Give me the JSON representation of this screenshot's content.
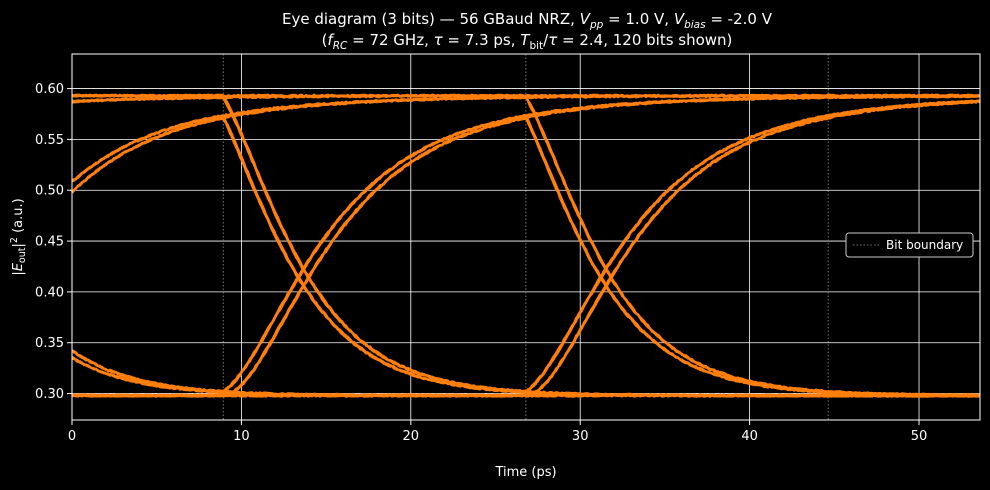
{
  "chart_data": {
    "type": "line",
    "title_line1": "Eye diagram (3 bits) — 56 GBaud NRZ,  V_pp = 1.0 V,  V_bias = -2.0 V",
    "title_line2": "(f_RC = 72 GHz,  τ = 7.3 ps,  T_bit/τ = 2.4,  120 bits shown)",
    "xlabel": "Time (ps)",
    "ylabel": "|E_out|^2 (a.u.)",
    "xlim": [
      0,
      53.6
    ],
    "ylim": [
      0.274,
      0.634
    ],
    "xticks": [
      0,
      10,
      20,
      30,
      40,
      50
    ],
    "yticks": [
      0.3,
      0.35,
      0.4,
      0.45,
      0.5,
      0.55,
      0.6
    ],
    "grid": true,
    "bit_boundaries_ps": [
      8.93,
      26.79,
      44.64
    ],
    "legend": {
      "position": "center-right",
      "entries": [
        "Bit boundary"
      ]
    },
    "series_color": "#ff7f0e",
    "boundary_color": "#777777",
    "model": {
      "bit_period_ps": 17.857,
      "tau_ps": 7.3,
      "pattern_length": 3,
      "high_level": 0.593,
      "low_level": 0.288,
      "transfer_peak": 0.616,
      "transfer_trough": 0.298
    }
  }
}
